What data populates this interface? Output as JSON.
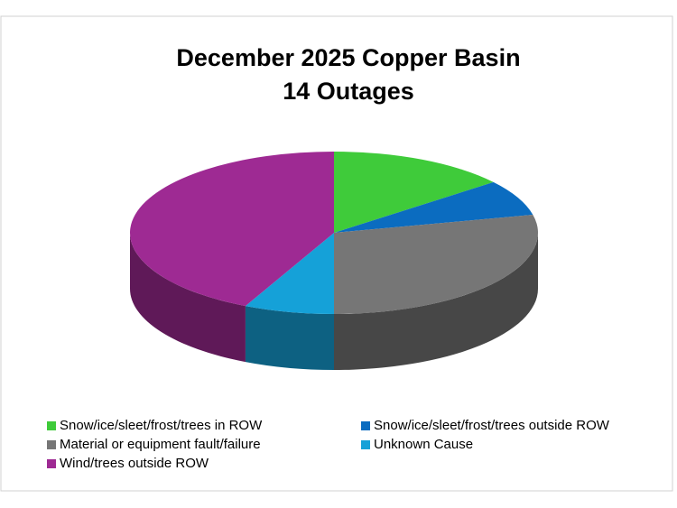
{
  "chart_data": {
    "type": "pie",
    "title": "December 2025 Copper Basin",
    "subtitle": "14 Outages",
    "categories": [
      "Snow/ice/sleet/frost/trees in ROW",
      "Snow/ice/sleet/frost/trees outside ROW",
      "Material or equipment fault/failure",
      "Unknown Cause",
      "Wind/trees outside ROW"
    ],
    "values": [
      2,
      1,
      4,
      1,
      6
    ],
    "colors": [
      "#3fcb3a",
      "#0b6cc0",
      "#767676",
      "#15a1d8",
      "#9e2a93"
    ],
    "legend": "bottom"
  }
}
